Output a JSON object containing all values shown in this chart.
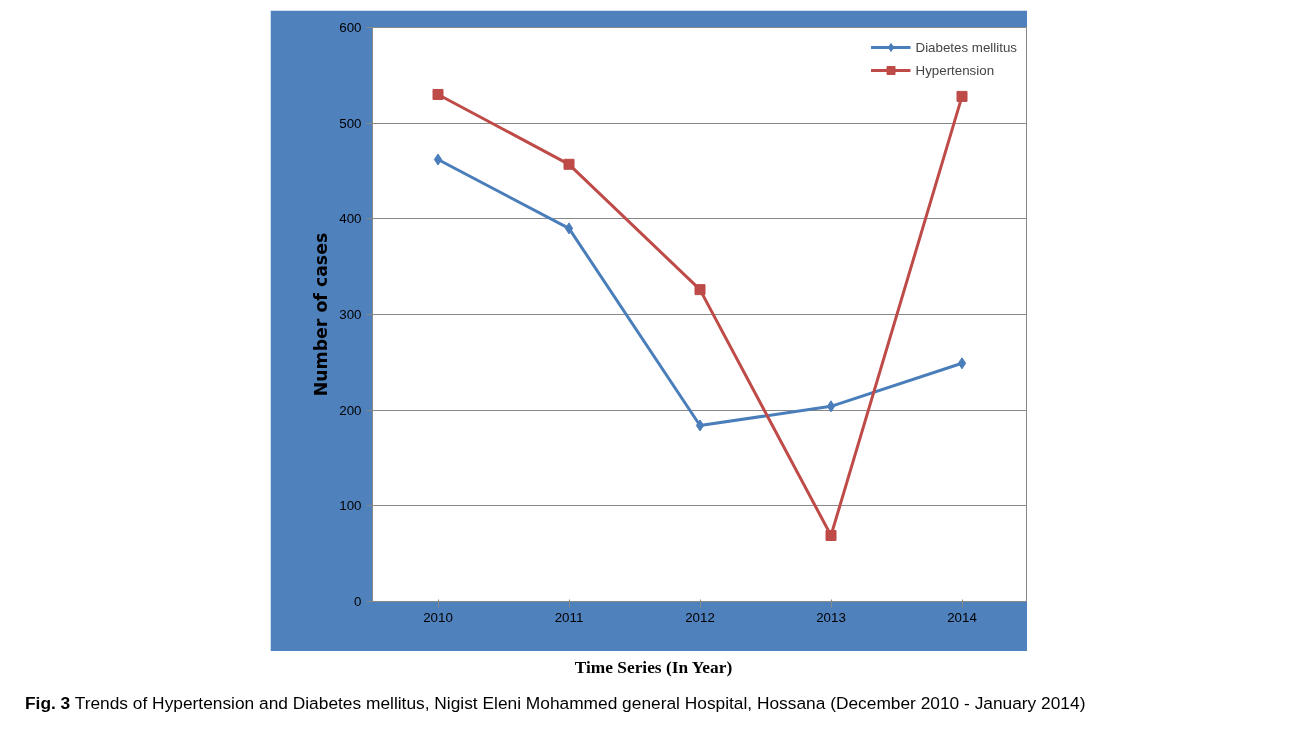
{
  "chart_data": {
    "type": "line",
    "xlabel": "Time Series (In Year)",
    "ylabel": "Number of cases",
    "categories": [
      "2010",
      "2011",
      "2012",
      "2013",
      "2014"
    ],
    "series": [
      {
        "name": "Diabetes mellitus",
        "color": "#4a7ebb",
        "marker": "diamond",
        "values": [
          462,
          390,
          184,
          204,
          249
        ]
      },
      {
        "name": "Hypertension",
        "color": "#be4b48",
        "marker": "square",
        "values": [
          530,
          457,
          326,
          69,
          528
        ]
      }
    ],
    "ylim": [
      0,
      600
    ],
    "yticks": [
      0,
      100,
      200,
      300,
      400,
      500,
      600
    ],
    "grid": "y",
    "legend": "top right",
    "line_style": "solid",
    "annotations": [
      "Fig. 3 Trends of Hypertension and Diabetes mellitus, Nigist Eleni Mohammed general Hospital, Hossana (December 2010 - January 2014)"
    ]
  }
}
